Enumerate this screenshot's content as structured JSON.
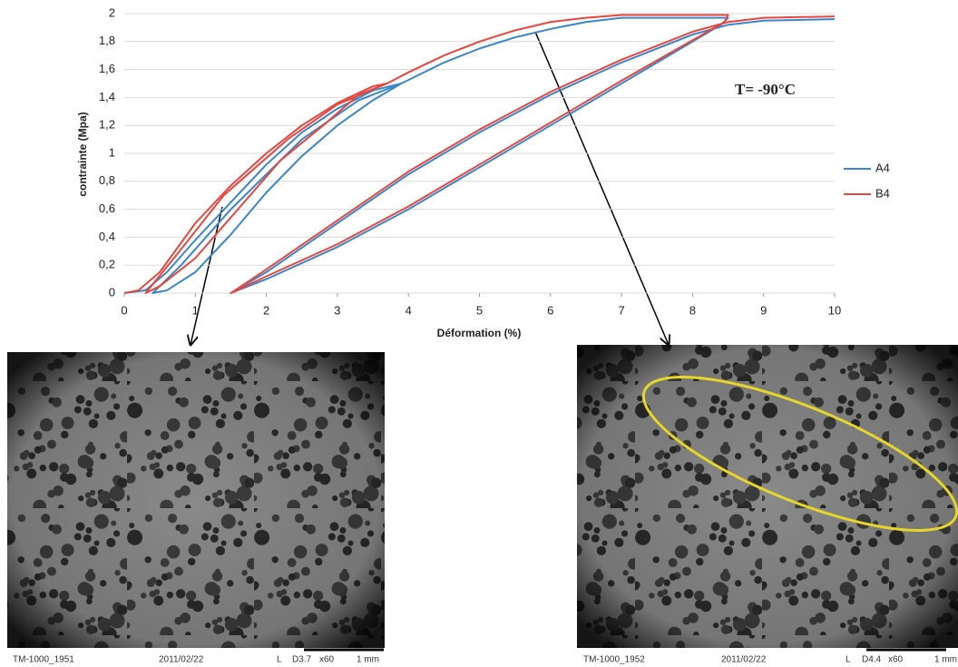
{
  "chart_data": {
    "type": "line",
    "annotation": "T= -90°C",
    "x_label": "Déformation (%)",
    "y_label": "contrainte (Mpa)",
    "xlim": [
      0,
      10
    ],
    "ylim": [
      0,
      2
    ],
    "xticks": [
      0,
      1,
      2,
      3,
      4,
      5,
      6,
      7,
      8,
      9,
      10
    ],
    "yticks": [
      0,
      {
        "value": 0.2,
        "label": "0,2"
      },
      {
        "value": 0.4,
        "label": "0,4"
      },
      {
        "value": 0.6,
        "label": "0,6"
      },
      {
        "value": 0.8,
        "label": "0,8"
      },
      1,
      {
        "value": 1.2,
        "label": "1,2"
      },
      {
        "value": 1.4,
        "label": "1,4"
      },
      {
        "value": 1.6,
        "label": "1,6"
      },
      {
        "value": 1.8,
        "label": "1,8"
      },
      2
    ],
    "grid": true,
    "legend": "right",
    "series": [
      {
        "name": "A4",
        "color": "#3a86c8",
        "x": [
          0,
          0.3,
          0.6,
          1,
          1.5,
          2,
          2.5,
          3,
          3.5,
          3.9,
          3.5,
          3,
          2.5,
          2,
          1.5,
          1,
          0.6,
          0.4,
          0.8,
          1.5,
          2.5,
          3.3,
          3.9,
          4.5,
          5,
          5.5,
          6,
          6.5,
          7,
          8,
          8.5,
          8.4,
          7,
          6,
          5,
          4,
          3,
          2,
          1.5,
          2,
          3,
          4,
          5,
          6,
          7,
          8,
          8.5,
          9,
          10
        ],
        "values": [
          0,
          0.02,
          0.15,
          0.38,
          0.65,
          0.92,
          1.15,
          1.32,
          1.45,
          1.5,
          1.38,
          1.2,
          0.98,
          0.72,
          0.42,
          0.15,
          0.02,
          0,
          0.2,
          0.6,
          1.1,
          1.38,
          1.5,
          1.65,
          1.75,
          1.83,
          1.89,
          1.94,
          1.97,
          1.97,
          1.97,
          1.92,
          1.5,
          1.2,
          0.9,
          0.6,
          0.33,
          0.1,
          0,
          0.15,
          0.5,
          0.85,
          1.15,
          1.42,
          1.65,
          1.85,
          1.92,
          1.95,
          1.96
        ]
      },
      {
        "name": "B4",
        "color": "#e8473f",
        "x": [
          0,
          0.2,
          0.5,
          1,
          1.5,
          2,
          2.5,
          3,
          3.5,
          3.7,
          3.3,
          2.8,
          2.2,
          1.6,
          1,
          0.5,
          0.3,
          0.7,
          1.4,
          2.3,
          3,
          3.7,
          4,
          4.5,
          5,
          5.5,
          6,
          6.5,
          7,
          8,
          8.5,
          8.45,
          7,
          6,
          5,
          4,
          3,
          2,
          1.5,
          2,
          3,
          4,
          5,
          6,
          7,
          8,
          8.5,
          9,
          10
        ],
        "values": [
          0,
          0.02,
          0.15,
          0.5,
          0.77,
          1.0,
          1.2,
          1.36,
          1.48,
          1.5,
          1.42,
          1.2,
          0.95,
          0.6,
          0.25,
          0.05,
          0,
          0.25,
          0.7,
          1.1,
          1.35,
          1.5,
          1.58,
          1.7,
          1.8,
          1.88,
          1.94,
          1.97,
          1.99,
          1.99,
          1.99,
          1.94,
          1.52,
          1.22,
          0.92,
          0.62,
          0.35,
          0.12,
          0,
          0.17,
          0.52,
          0.87,
          1.17,
          1.44,
          1.67,
          1.87,
          1.94,
          1.97,
          1.98
        ]
      }
    ]
  },
  "images": [
    {
      "caption": [
        "TM-1000_1951",
        "2011/02/22",
        "L",
        "D3.7",
        "x60",
        "1 mm"
      ]
    },
    {
      "caption": [
        "TM-1000_1952",
        "2011/02/22",
        "L",
        "D4.4",
        "x60",
        "1 mm"
      ]
    }
  ]
}
